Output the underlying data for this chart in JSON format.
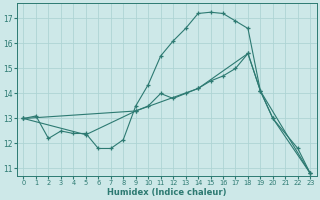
{
  "xlabel": "Humidex (Indice chaleur)",
  "bg_color": "#cde8e8",
  "grid_color": "#aed4d4",
  "line_color": "#2d7a72",
  "xlim": [
    -0.5,
    23.5
  ],
  "ylim": [
    10.7,
    17.6
  ],
  "yticks": [
    11,
    12,
    13,
    14,
    15,
    16,
    17
  ],
  "xticks": [
    0,
    1,
    2,
    3,
    4,
    5,
    6,
    7,
    8,
    9,
    10,
    11,
    12,
    13,
    14,
    15,
    16,
    17,
    18,
    19,
    20,
    21,
    22,
    23
  ],
  "line1_x": [
    0,
    1,
    2,
    3,
    4,
    5,
    6,
    7,
    8,
    9,
    10,
    11,
    12,
    13,
    14,
    15,
    16,
    17,
    18,
    19,
    20,
    22,
    23
  ],
  "line1_y": [
    13.0,
    13.1,
    12.2,
    12.5,
    12.4,
    12.4,
    11.8,
    11.8,
    12.15,
    13.5,
    14.35,
    15.5,
    16.1,
    16.6,
    17.2,
    17.25,
    17.2,
    16.9,
    16.6,
    14.1,
    13.0,
    11.8,
    10.8
  ],
  "line2_x": [
    0,
    9,
    10,
    11,
    12,
    13,
    14,
    15,
    16,
    17,
    18,
    19,
    20,
    23
  ],
  "line2_y": [
    13.0,
    13.3,
    13.5,
    14.0,
    13.8,
    14.0,
    14.2,
    14.5,
    14.7,
    15.0,
    15.6,
    14.1,
    13.0,
    10.8
  ],
  "line3_x": [
    0,
    5,
    9,
    14,
    18,
    19,
    23
  ],
  "line3_y": [
    13.0,
    12.35,
    13.3,
    14.2,
    15.6,
    14.1,
    10.8
  ],
  "figsize": [
    3.2,
    2.0
  ],
  "dpi": 100
}
